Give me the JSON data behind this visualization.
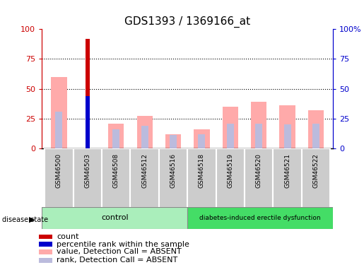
{
  "title": "GDS1393 / 1369166_at",
  "samples": [
    "GSM46500",
    "GSM46503",
    "GSM46508",
    "GSM46512",
    "GSM46516",
    "GSM46518",
    "GSM46519",
    "GSM46520",
    "GSM46521",
    "GSM46522"
  ],
  "count_values": [
    0,
    92,
    0,
    0,
    0,
    0,
    0,
    0,
    0,
    0
  ],
  "percentile_rank": [
    0,
    44,
    0,
    0,
    0,
    0,
    0,
    0,
    0,
    0
  ],
  "value_absent": [
    60,
    0,
    21,
    27,
    12,
    16,
    35,
    39,
    36,
    32
  ],
  "rank_absent": [
    31,
    0,
    16,
    19,
    11,
    12,
    21,
    21,
    20,
    21
  ],
  "n_control": 5,
  "n_disease": 5,
  "control_label": "control",
  "disease_label": "diabetes-induced erectile dysfunction",
  "disease_state_label": "disease state",
  "ylim": [
    0,
    100
  ],
  "yticks": [
    0,
    25,
    50,
    75,
    100
  ],
  "grid_lines": [
    25,
    50,
    75
  ],
  "color_count": "#cc0000",
  "color_percentile": "#0000cc",
  "color_value_absent": "#ffaaaa",
  "color_rank_absent": "#bbbbdd",
  "color_control_bg": "#aaeebb",
  "color_disease_bg": "#44dd66",
  "color_xticklabel_bg": "#cccccc",
  "color_tick_left": "#cc0000",
  "color_tick_right": "#0000cc",
  "bar_width": 0.55,
  "title_fontsize": 11,
  "tick_fontsize": 8,
  "label_fontsize": 7,
  "legend_fontsize": 8
}
